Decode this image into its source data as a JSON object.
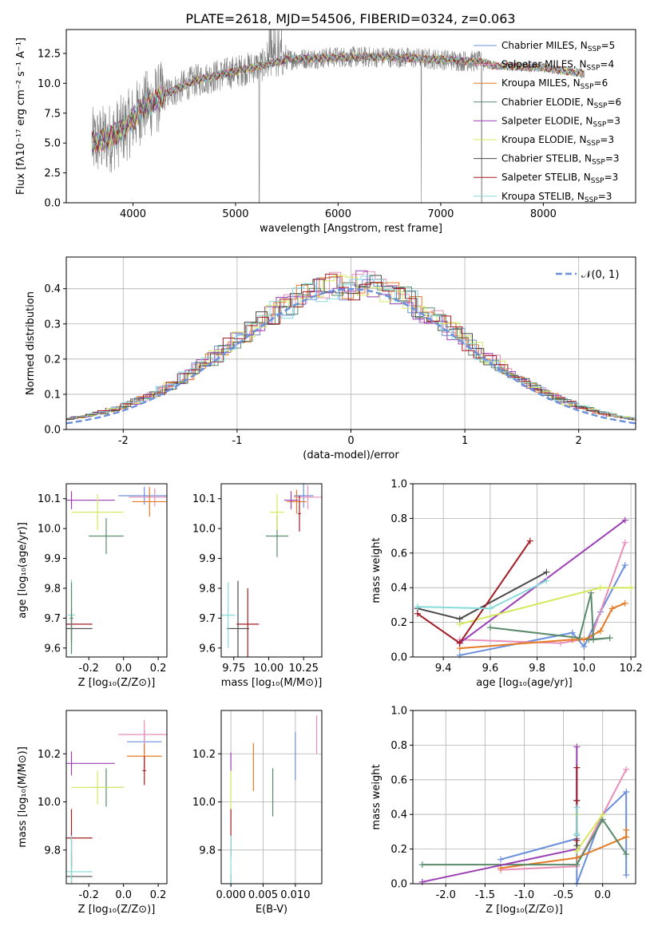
{
  "palette": {
    "blue": "#6a8fdc",
    "pink": "#e88eb8",
    "orange": "#e57a25",
    "green": "#5a8a6a",
    "purple": "#9b3fb5",
    "yellow": "#d5e85a",
    "darkgray": "#4a4a4a",
    "red": "#a11c24",
    "cyan": "#85dbdb",
    "data": "#7f7f7f"
  },
  "chart_data": [
    {
      "id": "spectrum",
      "type": "line",
      "title": "PLATE=2618, MJD=54506, FIBERID=0324, z=0.063",
      "xlabel": "wavelength [Angstrom, rest frame]",
      "ylabel": "Flux [fλ10⁻¹⁷ erg cm⁻² s⁻¹ A⁻¹]",
      "xlim": [
        3350,
        8900
      ],
      "ylim": [
        0,
        14.5
      ],
      "xticks": [
        4000,
        5000,
        6000,
        7000,
        8000
      ],
      "yticks": [
        0.0,
        2.5,
        5.0,
        7.5,
        10.0,
        12.5
      ],
      "legend_position": "upper right",
      "series": [
        {
          "name": "Chabrier MILES, N",
          "sub": "SSP",
          "suffix": "=5",
          "color": "#6a8fdc"
        },
        {
          "name": "Salpeter MILES, N",
          "sub": "SSP",
          "suffix": "=4",
          "color": "#e88eb8"
        },
        {
          "name": "Kroupa MILES, N",
          "sub": "SSP",
          "suffix": "=6",
          "color": "#e57a25"
        },
        {
          "name": "Chabrier ELODIE, N",
          "sub": "SSP",
          "suffix": "=6",
          "color": "#5a8a6a"
        },
        {
          "name": "Salpeter ELODIE, N",
          "sub": "SSP",
          "suffix": "=3",
          "color": "#9b3fb5"
        },
        {
          "name": "Kroupa ELODIE, N",
          "sub": "SSP",
          "suffix": "=3",
          "color": "#d5e85a"
        },
        {
          "name": "Chabrier STELIB, N",
          "sub": "SSP",
          "suffix": "=3",
          "color": "#4a4a4a"
        },
        {
          "name": "Salpeter STELIB, N",
          "sub": "SSP",
          "suffix": "=3",
          "color": "#a11c24"
        },
        {
          "name": "Kroupa STELIB, N",
          "sub": "SSP",
          "suffix": "=3",
          "color": "#85dbdb"
        }
      ],
      "continuum_anchor_points": [
        [
          3600,
          5.0
        ],
        [
          3800,
          5.5
        ],
        [
          3950,
          6.5
        ],
        [
          4100,
          8.0
        ],
        [
          4300,
          9.0
        ],
        [
          4600,
          10.2
        ],
        [
          5000,
          11.0
        ],
        [
          5500,
          12.0
        ],
        [
          6000,
          12.2
        ],
        [
          6500,
          12.2
        ],
        [
          7000,
          12.0
        ],
        [
          7400,
          11.8
        ],
        [
          7500,
          11.5
        ],
        [
          8000,
          11.3
        ],
        [
          8400,
          10.8
        ]
      ],
      "observed_extent": [
        3600,
        7420
      ],
      "model_extent": [
        3600,
        8400
      ],
      "notable_features": [
        {
          "x": 5230,
          "y": 0.0
        },
        {
          "x": 6810,
          "y": 0.0
        },
        {
          "x": 7400,
          "y": 0.0
        }
      ]
    },
    {
      "id": "residuals",
      "type": "histogram",
      "xlabel": "(data-model)/error",
      "ylabel": "Normed distribution",
      "xlim": [
        -2.5,
        2.5
      ],
      "ylim": [
        0,
        0.49
      ],
      "xticks": [
        -2,
        -1,
        0,
        1,
        2
      ],
      "yticks": [
        0.0,
        0.1,
        0.2,
        0.3,
        0.4
      ],
      "grid": true,
      "bin_width": 0.1,
      "reference_curve": {
        "label": "𝒩(0, 1)",
        "mean": 0,
        "sigma": 1,
        "color": "#6a8fdc",
        "style": "dashed"
      },
      "legend_position": "upper right"
    },
    {
      "id": "age_vs_Z",
      "type": "errorbar",
      "xlabel": "Z [log₁₀(Z/Z⊙)]",
      "ylabel": "age  [log₁₀(age/yr)]",
      "xlim": [
        -0.33,
        0.25
      ],
      "ylim": [
        9.57,
        10.15
      ],
      "xticks": [
        -0.2,
        0.0,
        0.2
      ],
      "yticks": [
        9.6,
        9.7,
        9.8,
        9.9,
        10.0,
        10.1
      ],
      "points": [
        {
          "x": 0.12,
          "y": 10.11,
          "xerr": 0.15,
          "yerr": 0.03,
          "color": "#6a8fdc"
        },
        {
          "x": 0.18,
          "y": 10.105,
          "xerr": 0.15,
          "yerr": 0.03,
          "color": "#e88eb8"
        },
        {
          "x": 0.15,
          "y": 10.09,
          "xerr": 0.1,
          "yerr": 0.05,
          "color": "#e57a25"
        },
        {
          "x": -0.1,
          "y": 9.975,
          "xerr": 0.1,
          "yerr": 0.06,
          "color": "#5a8a6a"
        },
        {
          "x": -0.3,
          "y": 10.095,
          "xerr": 0.25,
          "yerr": 0.03,
          "color": "#9b3fb5"
        },
        {
          "x": -0.15,
          "y": 10.055,
          "xerr": 0.15,
          "yerr": 0.06,
          "color": "#d5e85a"
        },
        {
          "x": -0.3,
          "y": 9.665,
          "xerr": 0.12,
          "yerr": 0.05,
          "color": "#4a4a4a"
        },
        {
          "x": -0.3,
          "y": 9.68,
          "xerr": 0.12,
          "yerr": 0.05,
          "color": "#a11c24"
        },
        {
          "x": -0.3,
          "y": 9.71,
          "xerr": 0.02,
          "yerr": 0.12,
          "color": "#85dbdb"
        },
        {
          "x": -0.3,
          "y": 9.7,
          "xerr": 0.01,
          "yerr": 0.12,
          "color": "#5a8a6a"
        }
      ]
    },
    {
      "id": "age_vs_mass",
      "type": "errorbar",
      "xlabel": "mass [log₁₀(M/M⊙)]",
      "ylabel": "",
      "xlim": [
        9.66,
        10.38
      ],
      "ylim": [
        9.57,
        10.15
      ],
      "xticks": [
        9.75,
        10.0,
        10.25
      ],
      "yticks": [
        9.6,
        9.7,
        9.8,
        9.9,
        10.0,
        10.1
      ],
      "points": [
        {
          "x": 10.25,
          "y": 10.11,
          "xerr": 0.07,
          "yerr": 0.04,
          "color": "#6a8fdc"
        },
        {
          "x": 10.28,
          "y": 10.105,
          "xerr": 0.1,
          "yerr": 0.04,
          "color": "#e88eb8"
        },
        {
          "x": 10.2,
          "y": 10.09,
          "xerr": 0.07,
          "yerr": 0.04,
          "color": "#e57a25"
        },
        {
          "x": 10.06,
          "y": 9.975,
          "xerr": 0.08,
          "yerr": 0.07,
          "color": "#5a8a6a"
        },
        {
          "x": 10.16,
          "y": 10.095,
          "xerr": 0.05,
          "yerr": 0.03,
          "color": "#9b3fb5"
        },
        {
          "x": 10.06,
          "y": 10.055,
          "xerr": 0.05,
          "yerr": 0.06,
          "color": "#d5e85a"
        },
        {
          "x": 9.78,
          "y": 9.665,
          "xerr": 0.08,
          "yerr": 0.16,
          "color": "#4a4a4a"
        },
        {
          "x": 9.85,
          "y": 9.68,
          "xerr": 0.08,
          "yerr": 0.12,
          "color": "#a11c24"
        },
        {
          "x": 9.71,
          "y": 9.71,
          "xerr": 0.05,
          "yerr": 0.11,
          "color": "#85dbdb"
        },
        {
          "x": 10.22,
          "y": 10.05,
          "xerr": 0.01,
          "yerr": 0.06,
          "color": "#a11c24"
        }
      ]
    },
    {
      "id": "massweight_vs_age",
      "type": "line",
      "xlabel": "age  [log₁₀(age/yr)]",
      "ylabel": "mass weight",
      "xlim": [
        9.27,
        10.22
      ],
      "ylim": [
        0,
        1.0
      ],
      "xticks": [
        9.4,
        9.6,
        9.8,
        10.0,
        10.2
      ],
      "yticks": [
        0.0,
        0.2,
        0.4,
        0.6,
        0.8,
        1.0
      ],
      "grid": true,
      "series": [
        {
          "color": "#6a8fdc",
          "x": [
            9.47,
            9.95,
            10.0,
            10.07,
            10.175
          ],
          "y": [
            0.01,
            0.14,
            0.06,
            0.26,
            0.53
          ]
        },
        {
          "color": "#e88eb8",
          "x": [
            9.47,
            9.9,
            10.03,
            10.175
          ],
          "y": [
            0.1,
            0.08,
            0.11,
            0.66
          ]
        },
        {
          "color": "#e57a25",
          "x": [
            9.47,
            9.95,
            10.0,
            10.07,
            10.12,
            10.175
          ],
          "y": [
            0.05,
            0.1,
            0.1,
            0.15,
            0.28,
            0.31
          ]
        },
        {
          "color": "#5a8a6a",
          "x": [
            9.6,
            9.98,
            10.03,
            10.04,
            10.11,
            10.02
          ],
          "y": [
            0.17,
            0.11,
            0.37,
            0.1,
            0.11,
            0.1
          ]
        },
        {
          "color": "#9b3fb5",
          "x": [
            9.47,
            10.175
          ],
          "y": [
            0.08,
            0.79
          ]
        },
        {
          "color": "#d5e85a",
          "x": [
            9.47,
            10.07,
            10.2
          ],
          "y": [
            0.19,
            0.4,
            0.4
          ]
        },
        {
          "color": "#4a4a4a",
          "x": [
            9.29,
            9.47,
            9.84
          ],
          "y": [
            0.28,
            0.22,
            0.49
          ]
        },
        {
          "color": "#a11c24",
          "x": [
            9.29,
            9.47,
            9.77
          ],
          "y": [
            0.25,
            0.08,
            0.67
          ]
        },
        {
          "color": "#85dbdb",
          "x": [
            9.29,
            9.6,
            9.84
          ],
          "y": [
            0.29,
            0.28,
            0.44
          ]
        }
      ]
    },
    {
      "id": "mass_vs_Z",
      "type": "errorbar",
      "xlabel": "Z [log₁₀(Z/Z⊙)]",
      "ylabel": "mass [log₁₀(M/M⊙)]",
      "xlim": [
        -0.33,
        0.25
      ],
      "ylim": [
        9.66,
        10.38
      ],
      "xticks": [
        -0.2,
        0.0,
        0.2
      ],
      "yticks": [
        9.8,
        10.0,
        10.2
      ],
      "points": [
        {
          "x": 0.12,
          "y": 10.25,
          "xerr": 0.1,
          "yerr": 0.05,
          "color": "#6a8fdc"
        },
        {
          "x": 0.12,
          "y": 10.28,
          "xerr": 0.15,
          "yerr": 0.06,
          "color": "#e88eb8"
        },
        {
          "x": 0.12,
          "y": 10.19,
          "xerr": 0.1,
          "yerr": 0.05,
          "color": "#e57a25"
        },
        {
          "x": -0.1,
          "y": 10.06,
          "xerr": 0.1,
          "yerr": 0.08,
          "color": "#5a8a6a"
        },
        {
          "x": -0.3,
          "y": 10.16,
          "xerr": 0.25,
          "yerr": 0.05,
          "color": "#9b3fb5"
        },
        {
          "x": -0.15,
          "y": 10.06,
          "xerr": 0.15,
          "yerr": 0.07,
          "color": "#d5e85a"
        },
        {
          "x": -0.3,
          "y": 9.69,
          "xerr": 0.12,
          "yerr": 0.1,
          "color": "#4a4a4a"
        },
        {
          "x": -0.3,
          "y": 9.85,
          "xerr": 0.12,
          "yerr": 0.12,
          "color": "#a11c24"
        },
        {
          "x": -0.3,
          "y": 9.71,
          "xerr": 0.12,
          "yerr": 0.15,
          "color": "#85dbdb"
        },
        {
          "x": 0.12,
          "y": 10.13,
          "xerr": 0.01,
          "yerr": 0.06,
          "color": "#a11c24"
        }
      ]
    },
    {
      "id": "mass_vs_ebv",
      "type": "errorbar",
      "xlabel": "E(B-V)",
      "ylabel": "",
      "xlim": [
        -0.0015,
        0.0141
      ],
      "ylim": [
        9.66,
        10.38
      ],
      "xticks": [
        0.0,
        0.005,
        0.01
      ],
      "xticklabels": [
        "0.000",
        "0.005",
        "0.010"
      ],
      "yticks": [
        9.8,
        10.0,
        10.2
      ],
      "grid": true,
      "points": [
        {
          "x": 0.01,
          "y": 10.19,
          "xerr": 0,
          "yerr": 0.1,
          "color": "#6a8fdc"
        },
        {
          "x": 0.0133,
          "y": 10.28,
          "xerr": 0,
          "yerr": 0.08,
          "color": "#e88eb8"
        },
        {
          "x": 0.0035,
          "y": 10.145,
          "xerr": 0,
          "yerr": 0.1,
          "color": "#e57a25"
        },
        {
          "x": 0.0065,
          "y": 10.04,
          "xerr": 0,
          "yerr": 0.1,
          "color": "#5a8a6a"
        },
        {
          "x": 0.0,
          "y": 10.165,
          "xerr": 0,
          "yerr": 0.04,
          "color": "#9b3fb5"
        },
        {
          "x": 0.0,
          "y": 10.03,
          "xerr": 0,
          "yerr": 0.1,
          "color": "#d5e85a"
        },
        {
          "x": 0.0,
          "y": 9.68,
          "xerr": 0,
          "yerr": 0.02,
          "color": "#4a4a4a"
        },
        {
          "x": 0.0,
          "y": 9.87,
          "xerr": 0,
          "yerr": 0.1,
          "color": "#a11c24"
        },
        {
          "x": 0.0,
          "y": 9.76,
          "xerr": 0,
          "yerr": 0.1,
          "color": "#85dbdb"
        }
      ]
    },
    {
      "id": "massweight_vs_Z",
      "type": "line",
      "xlabel": "Z [log₁₀(Z/Z⊙)]",
      "ylabel": "mass weight",
      "xlim": [
        -2.42,
        0.42
      ],
      "ylim": [
        0,
        1.0
      ],
      "xticks": [
        -2.0,
        -1.5,
        -1.0,
        -0.5,
        0.0
      ],
      "yticks": [
        0.0,
        0.2,
        0.4,
        0.6,
        0.8,
        1.0
      ],
      "grid": true,
      "series": [
        {
          "color": "#6a8fdc",
          "x": [
            -1.3,
            -0.33,
            -0.33,
            0.0,
            0.3,
            0.3
          ],
          "y": [
            0.14,
            0.26,
            0.0,
            0.4,
            0.53,
            0.05
          ]
        },
        {
          "color": "#e88eb8",
          "x": [
            -1.3,
            -0.33,
            -0.33,
            0.3
          ],
          "y": [
            0.08,
            0.1,
            0.11,
            0.66
          ]
        },
        {
          "color": "#e57a25",
          "x": [
            -1.3,
            -0.33,
            0.3,
            0.3
          ],
          "y": [
            0.09,
            0.15,
            0.27,
            0.31
          ]
        },
        {
          "color": "#5a8a6a",
          "x": [
            -2.3,
            -0.33,
            0.0,
            0.3
          ],
          "y": [
            0.11,
            0.11,
            0.37,
            0.17
          ]
        },
        {
          "color": "#9b3fb5",
          "x": [
            -2.3,
            -0.33,
            -0.33
          ],
          "y": [
            0.01,
            0.2,
            0.79
          ]
        },
        {
          "color": "#d5e85a",
          "x": [
            -0.33,
            -0.33,
            0.0
          ],
          "y": [
            0.4,
            0.19,
            0.4
          ]
        },
        {
          "color": "#4a4a4a",
          "x": [
            -0.33,
            -0.33,
            -0.33
          ],
          "y": [
            0.28,
            0.22,
            0.48
          ]
        },
        {
          "color": "#a11c24",
          "x": [
            -0.33,
            -0.33,
            -0.33
          ],
          "y": [
            0.25,
            0.48,
            0.67
          ]
        },
        {
          "color": "#85dbdb",
          "x": [
            -0.33,
            -0.33,
            -0.33
          ],
          "y": [
            0.28,
            0.29,
            0.44
          ]
        }
      ]
    }
  ]
}
